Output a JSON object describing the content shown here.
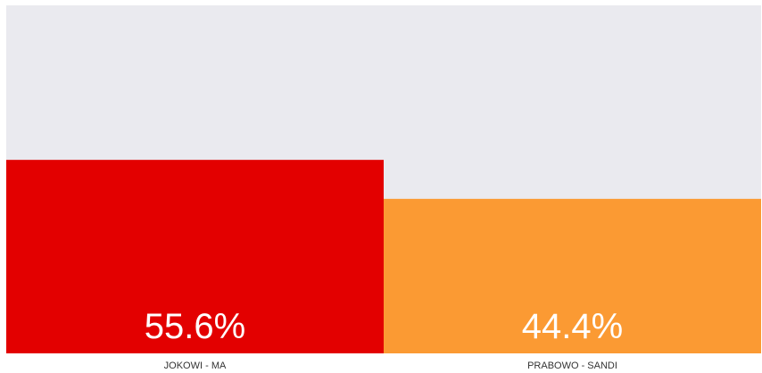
{
  "chart_data": {
    "type": "bar",
    "categories": [
      "JOKOWI - MA",
      "PRABOWO - SANDI"
    ],
    "values": [
      55.6,
      44.4
    ],
    "value_labels": [
      "55.6%",
      "44.4%"
    ],
    "ylim": [
      0,
      100
    ],
    "colors": {
      "bars": [
        "#e30000",
        "#fb9a33"
      ],
      "track": "#eaeaef",
      "value_text": "#ffffff",
      "category_text": "#333333"
    },
    "grid": false,
    "legend": "none"
  }
}
